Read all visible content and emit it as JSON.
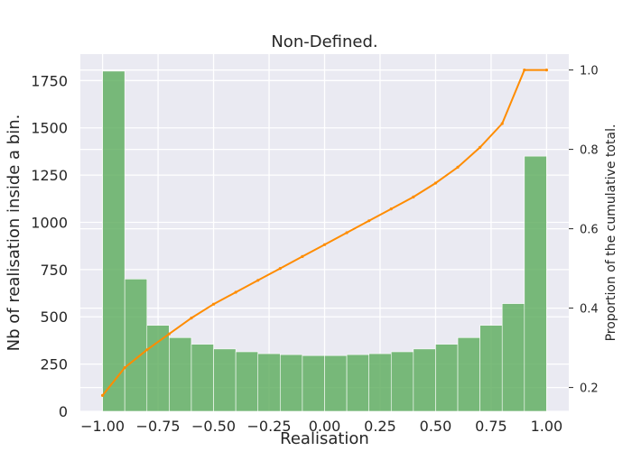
{
  "chart_data": {
    "type": "bar",
    "title": "Non-Defined.",
    "xlabel": "Realisation",
    "ylabel": "Nb of realisation inside a bin.",
    "y2label": "Proportion of the cumulative total.",
    "xlim": [
      -1.1,
      1.1
    ],
    "ylim": [
      0,
      1890
    ],
    "y2lim": [
      0.14,
      1.04
    ],
    "grid": true,
    "x_ticks": [
      -1.0,
      -0.75,
      -0.5,
      -0.25,
      0.0,
      0.25,
      0.5,
      0.75,
      1.0
    ],
    "x_tick_labels": [
      "−1.00",
      "−0.75",
      "−0.50",
      "−0.25",
      "0.00",
      "0.25",
      "0.50",
      "0.75",
      "1.00"
    ],
    "y_ticks": [
      0,
      250,
      500,
      750,
      1000,
      1250,
      1500,
      1750
    ],
    "y2_ticks": [
      0.2,
      0.4,
      0.6,
      0.8,
      1.0
    ],
    "y2_tick_labels": [
      "0.2",
      "0.4",
      "0.6",
      "0.8",
      "1.0"
    ],
    "bins": {
      "edges": [
        -1.0,
        -0.9,
        -0.8,
        -0.7,
        -0.6,
        -0.5,
        -0.4,
        -0.3,
        -0.2,
        -0.1,
        0.0,
        0.1,
        0.2,
        0.3,
        0.4,
        0.5,
        0.6,
        0.7,
        0.8,
        0.9,
        1.0
      ],
      "counts": [
        1800,
        700,
        455,
        390,
        355,
        330,
        315,
        305,
        300,
        295,
        295,
        300,
        305,
        315,
        330,
        355,
        390,
        455,
        570,
        1350
      ],
      "color": "#5aab5a"
    },
    "cumulative": {
      "x": [
        -1.0,
        -0.9,
        -0.8,
        -0.7,
        -0.6,
        -0.5,
        -0.4,
        -0.3,
        -0.2,
        -0.1,
        0.0,
        0.1,
        0.2,
        0.3,
        0.4,
        0.5,
        0.6,
        0.7,
        0.8,
        0.9,
        1.0
      ],
      "y": [
        0.18,
        0.25,
        0.295,
        0.335,
        0.375,
        0.41,
        0.44,
        0.47,
        0.5,
        0.53,
        0.56,
        0.59,
        0.62,
        0.65,
        0.68,
        0.715,
        0.755,
        0.805,
        0.865,
        1.0,
        1.0
      ],
      "color": "#ff8c00"
    },
    "colors": {
      "plot_bg": "#eaeaf2",
      "grid": "#ffffff",
      "text": "#262626"
    }
  }
}
